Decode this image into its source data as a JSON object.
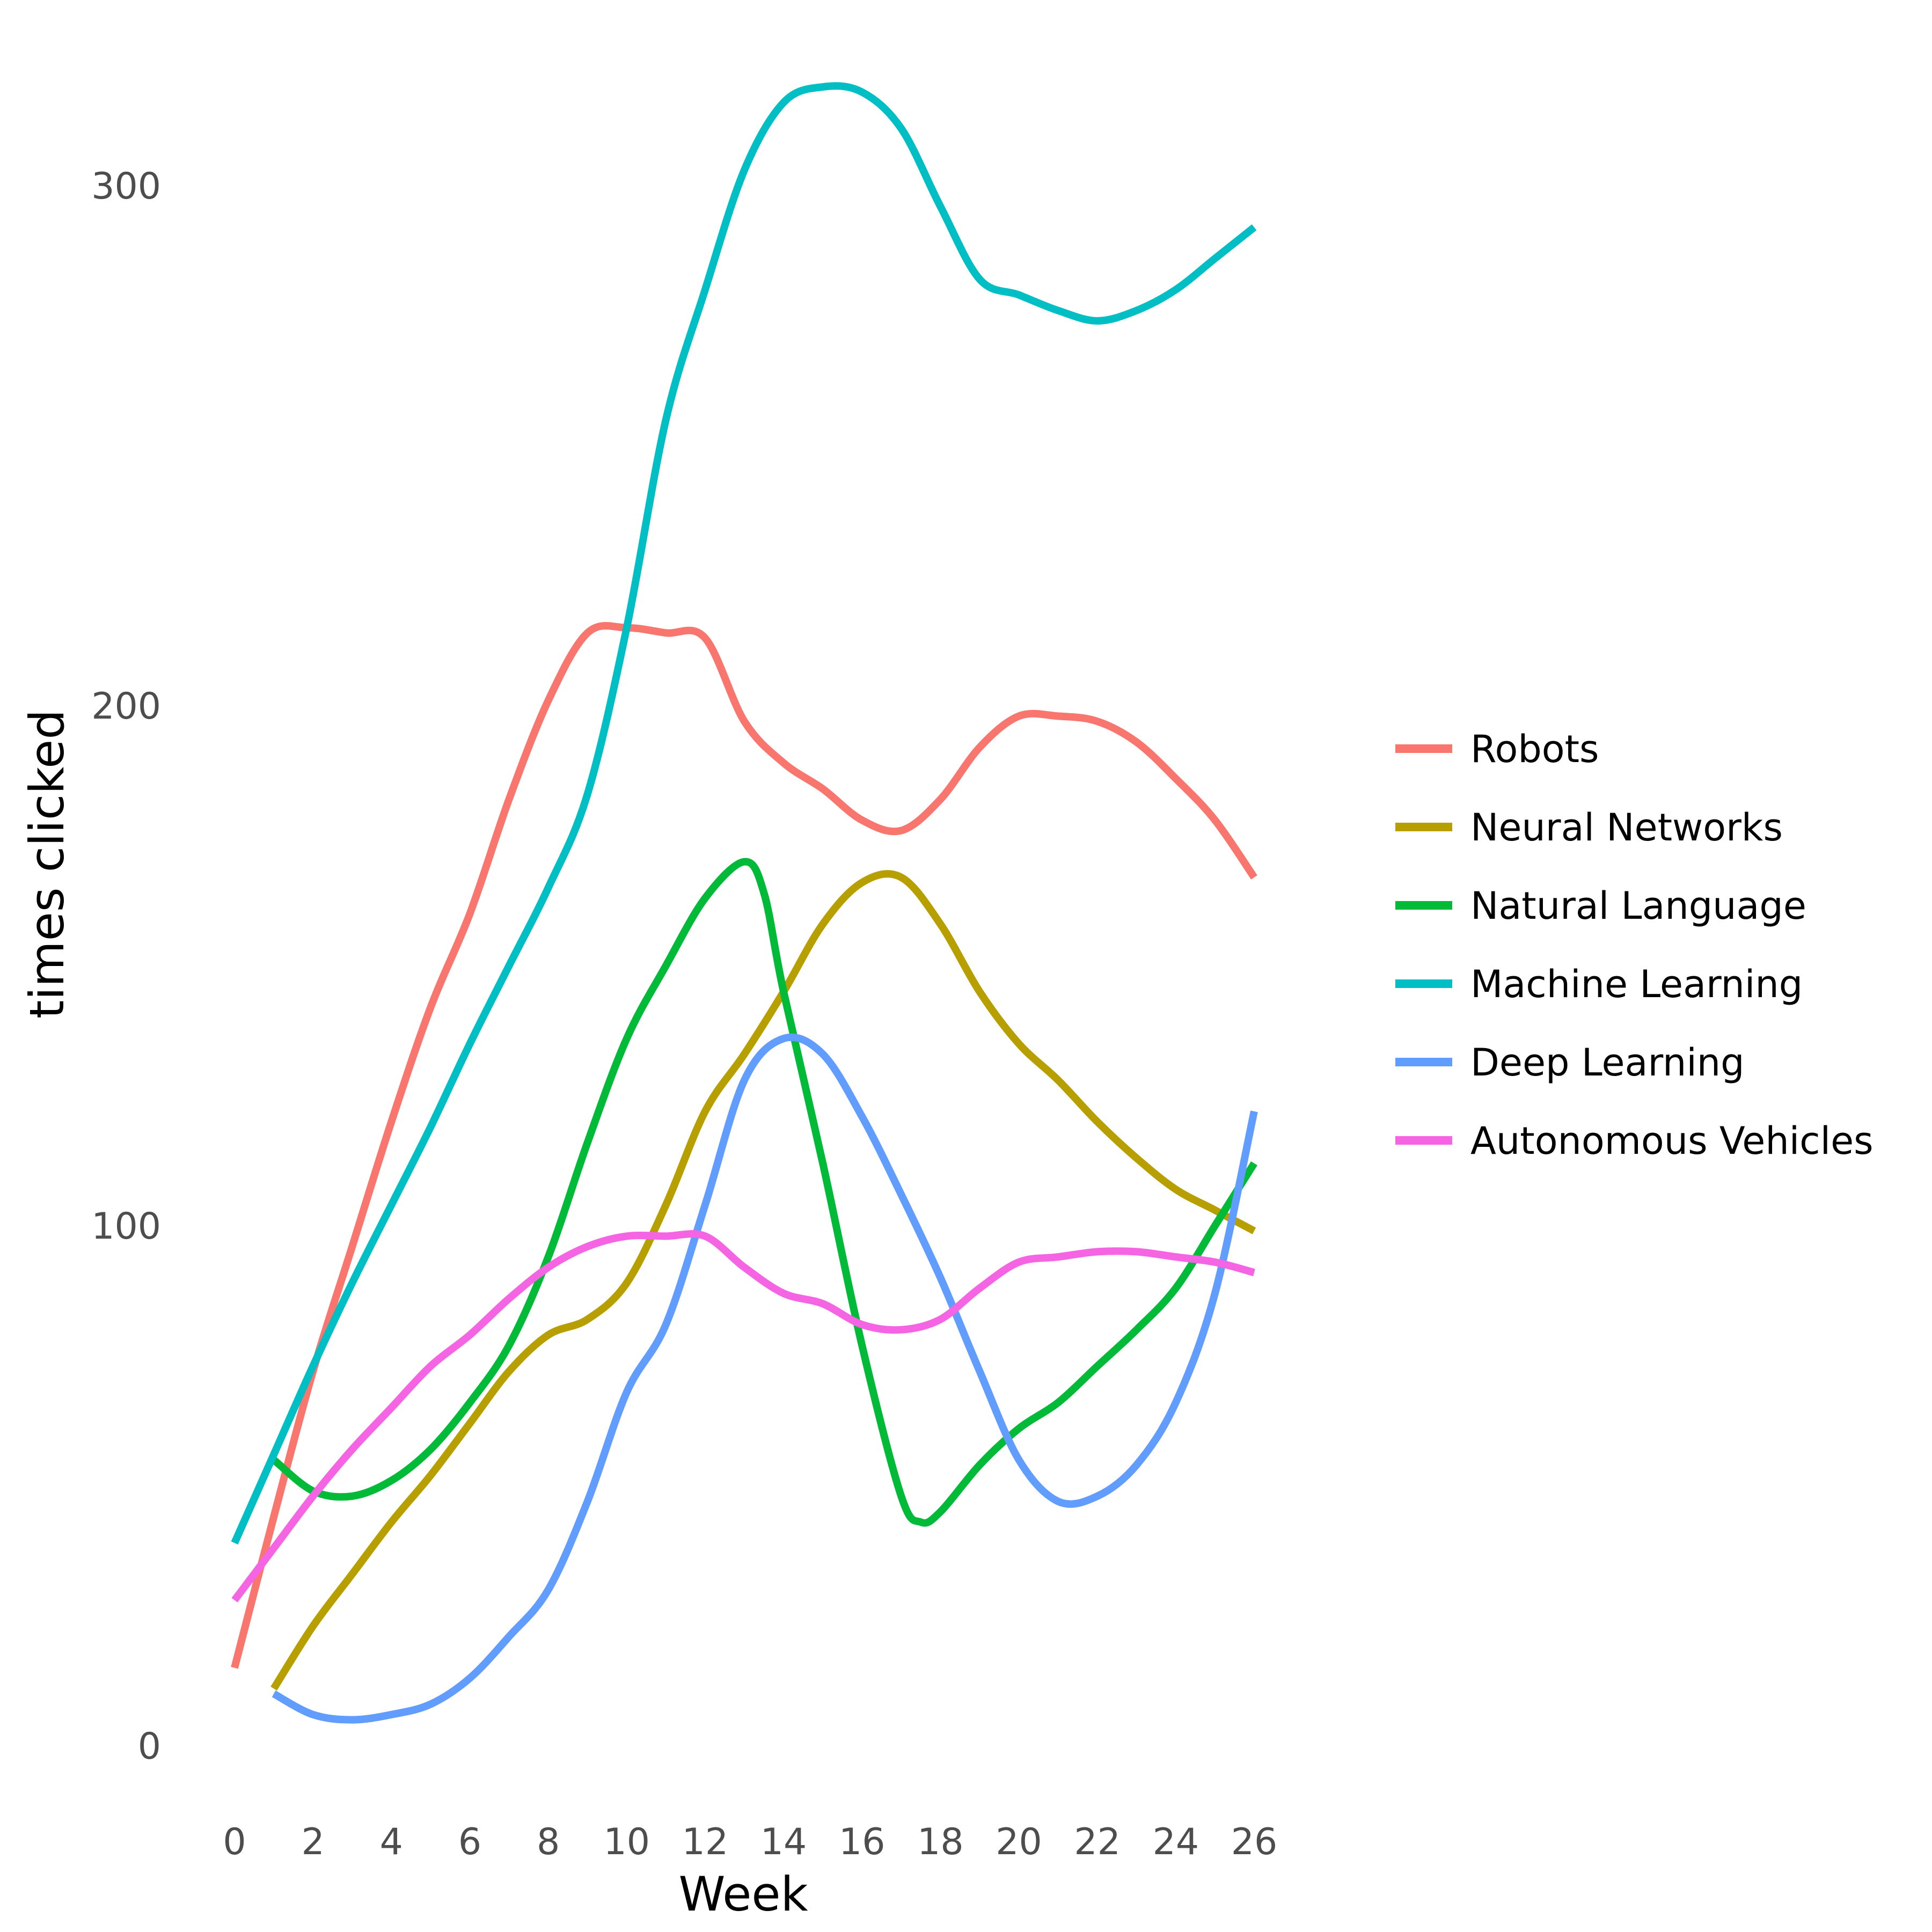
{
  "chart_data": {
    "type": "line",
    "title": "",
    "xlabel": "Week",
    "ylabel": "times clicked",
    "xlim": [
      0,
      26
    ],
    "ylim": [
      0,
      310
    ],
    "x_ticks": [
      "0",
      "2",
      "4",
      "6",
      "8",
      "10",
      "12",
      "14",
      "16",
      "18",
      "20",
      "22",
      "24",
      "26"
    ],
    "y_ticks": [
      "0",
      "100",
      "200",
      "300"
    ],
    "grid": false,
    "legend_position": "right",
    "series": [
      {
        "name": "Robots",
        "color": "#F8766D",
        "points": [
          [
            0,
            15
          ],
          [
            1,
            44
          ],
          [
            2,
            72
          ],
          [
            3,
            96
          ],
          [
            4,
            120
          ],
          [
            5,
            142
          ],
          [
            6,
            160
          ],
          [
            7,
            182
          ],
          [
            8,
            201
          ],
          [
            9,
            214
          ],
          [
            10,
            215
          ],
          [
            11,
            214
          ],
          [
            12,
            213
          ],
          [
            13,
            197
          ],
          [
            14,
            189
          ],
          [
            15,
            184
          ],
          [
            16,
            178
          ],
          [
            17,
            176
          ],
          [
            18,
            182
          ],
          [
            19,
            192
          ],
          [
            20,
            198
          ],
          [
            21,
            198
          ],
          [
            22,
            197
          ],
          [
            23,
            193
          ],
          [
            24,
            186
          ],
          [
            25,
            178
          ],
          [
            26,
            167
          ]
        ]
      },
      {
        "name": "Neural Networks",
        "color": "#B79F00",
        "points": [
          [
            1,
            11
          ],
          [
            2,
            23
          ],
          [
            3,
            33
          ],
          [
            4,
            43
          ],
          [
            5,
            52
          ],
          [
            6,
            62
          ],
          [
            7,
            72
          ],
          [
            8,
            79
          ],
          [
            9,
            82
          ],
          [
            10,
            89
          ],
          [
            11,
            104
          ],
          [
            12,
            122
          ],
          [
            13,
            133
          ],
          [
            14,
            145
          ],
          [
            15,
            158
          ],
          [
            16,
            166
          ],
          [
            17,
            167
          ],
          [
            18,
            158
          ],
          [
            19,
            145
          ],
          [
            20,
            135
          ],
          [
            21,
            128
          ],
          [
            22,
            120
          ],
          [
            23,
            113
          ],
          [
            24,
            107
          ],
          [
            25,
            103
          ],
          [
            26,
            99
          ]
        ]
      },
      {
        "name": "Natural Language",
        "color": "#00BA38",
        "points": [
          [
            1,
            55
          ],
          [
            2,
            49
          ],
          [
            3,
            48
          ],
          [
            4,
            51
          ],
          [
            5,
            57
          ],
          [
            6,
            66
          ],
          [
            7,
            77
          ],
          [
            8,
            94
          ],
          [
            9,
            116
          ],
          [
            10,
            136
          ],
          [
            11,
            150
          ],
          [
            12,
            163
          ],
          [
            13,
            170
          ],
          [
            13.5,
            164
          ],
          [
            14,
            145
          ],
          [
            15,
            112
          ],
          [
            16,
            77
          ],
          [
            17,
            48
          ],
          [
            17.5,
            43
          ],
          [
            18,
            45
          ],
          [
            19,
            54
          ],
          [
            20,
            61
          ],
          [
            21,
            66
          ],
          [
            22,
            73
          ],
          [
            23,
            80
          ],
          [
            24,
            88
          ],
          [
            25,
            100
          ],
          [
            26,
            112
          ]
        ]
      },
      {
        "name": "Machine Learning",
        "color": "#00BFC4",
        "points": [
          [
            0,
            39
          ],
          [
            1,
            56
          ],
          [
            2,
            73
          ],
          [
            3,
            89
          ],
          [
            4,
            104
          ],
          [
            5,
            119
          ],
          [
            6,
            135
          ],
          [
            7,
            150
          ],
          [
            8,
            165
          ],
          [
            9,
            183
          ],
          [
            10,
            215
          ],
          [
            11,
            255
          ],
          [
            12,
            280
          ],
          [
            13,
            303
          ],
          [
            14,
            316
          ],
          [
            15,
            319
          ],
          [
            16,
            318
          ],
          [
            17,
            311
          ],
          [
            18,
            296
          ],
          [
            19,
            282
          ],
          [
            20,
            279
          ],
          [
            21,
            276
          ],
          [
            22,
            274
          ],
          [
            23,
            276
          ],
          [
            24,
            280
          ],
          [
            25,
            286
          ],
          [
            26,
            292
          ]
        ]
      },
      {
        "name": "Deep Learning",
        "color": "#619CFF",
        "points": [
          [
            1,
            10
          ],
          [
            2,
            6
          ],
          [
            3,
            5
          ],
          [
            4,
            6
          ],
          [
            5,
            8
          ],
          [
            6,
            13
          ],
          [
            7,
            21
          ],
          [
            8,
            30
          ],
          [
            9,
            47
          ],
          [
            10,
            68
          ],
          [
            11,
            81
          ],
          [
            12,
            104
          ],
          [
            13,
            128
          ],
          [
            14,
            136
          ],
          [
            15,
            133
          ],
          [
            16,
            121
          ],
          [
            17,
            106
          ],
          [
            18,
            90
          ],
          [
            19,
            72
          ],
          [
            20,
            55
          ],
          [
            21,
            47
          ],
          [
            22,
            48
          ],
          [
            23,
            54
          ],
          [
            24,
            66
          ],
          [
            25,
            87
          ],
          [
            26,
            122
          ]
        ]
      },
      {
        "name": "Autonomous Vehicles",
        "color": "#F564E3",
        "points": [
          [
            0,
            28
          ],
          [
            1,
            38
          ],
          [
            2,
            48
          ],
          [
            3,
            57
          ],
          [
            4,
            65
          ],
          [
            5,
            73
          ],
          [
            6,
            79
          ],
          [
            7,
            86
          ],
          [
            8,
            92
          ],
          [
            9,
            96
          ],
          [
            10,
            98
          ],
          [
            11,
            98
          ],
          [
            12,
            98
          ],
          [
            13,
            92
          ],
          [
            14,
            87
          ],
          [
            15,
            85
          ],
          [
            16,
            81
          ],
          [
            17,
            80
          ],
          [
            18,
            82
          ],
          [
            19,
            88
          ],
          [
            20,
            93
          ],
          [
            21,
            94
          ],
          [
            22,
            95
          ],
          [
            23,
            95
          ],
          [
            24,
            94
          ],
          [
            25,
            93
          ],
          [
            26,
            91
          ]
        ]
      }
    ]
  }
}
